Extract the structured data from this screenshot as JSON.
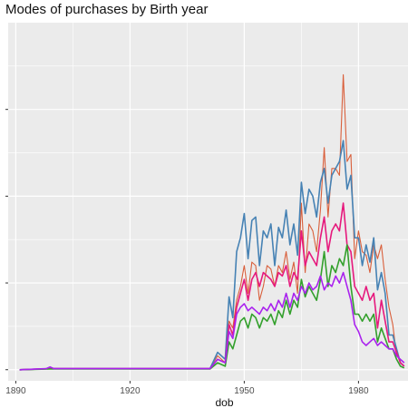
{
  "chart_data": {
    "type": "line",
    "title": "Modes of purchases by Birth year",
    "xlabel": "dob",
    "ylabel": "",
    "xlim": [
      1888,
      1993
    ],
    "ylim": [
      0,
      100
    ],
    "x_ticks": [
      "1890",
      "1920",
      "1950",
      "1980"
    ],
    "y_tick_values": [
      0,
      25,
      50,
      75
    ],
    "grid": true,
    "legend": "none",
    "background": "#ebebeb",
    "gridline_color": "#ffffff",
    "series": [
      {
        "color": "#d95f3b",
        "points": [
          [
            1891,
            0
          ],
          [
            1899,
            0.3
          ],
          [
            1941,
            0.3
          ],
          [
            1943,
            4
          ],
          [
            1945,
            2
          ],
          [
            1946,
            14
          ],
          [
            1947,
            12
          ],
          [
            1948,
            20
          ],
          [
            1949,
            24
          ],
          [
            1950,
            30
          ],
          [
            1951,
            22
          ],
          [
            1952,
            31
          ],
          [
            1953,
            30
          ],
          [
            1954,
            20
          ],
          [
            1955,
            24
          ],
          [
            1956,
            30
          ],
          [
            1957,
            29
          ],
          [
            1958,
            24
          ],
          [
            1959,
            30
          ],
          [
            1960,
            28
          ],
          [
            1961,
            34
          ],
          [
            1962,
            26
          ],
          [
            1963,
            31
          ],
          [
            1964,
            22
          ],
          [
            1965,
            48
          ],
          [
            1966,
            28
          ],
          [
            1967,
            42
          ],
          [
            1968,
            40
          ],
          [
            1969,
            34
          ],
          [
            1970,
            46
          ],
          [
            1971,
            64
          ],
          [
            1972,
            44
          ],
          [
            1973,
            58
          ],
          [
            1974,
            58
          ],
          [
            1975,
            56
          ],
          [
            1976,
            85
          ],
          [
            1977,
            60
          ],
          [
            1978,
            62
          ],
          [
            1979,
            32
          ],
          [
            1980,
            40
          ],
          [
            1981,
            34
          ],
          [
            1982,
            33
          ],
          [
            1983,
            28
          ],
          [
            1984,
            36
          ],
          [
            1985,
            32
          ],
          [
            1986,
            36
          ],
          [
            1987,
            26
          ],
          [
            1988,
            18
          ],
          [
            1989,
            13
          ],
          [
            1990,
            4
          ],
          [
            1991,
            3
          ],
          [
            1992,
            2
          ]
        ]
      },
      {
        "color": "#4682b4",
        "points": [
          [
            1891,
            0
          ],
          [
            1899,
            0.3
          ],
          [
            1941,
            0.3
          ],
          [
            1943,
            5
          ],
          [
            1945,
            3
          ],
          [
            1946,
            21
          ],
          [
            1947,
            15
          ],
          [
            1948,
            34
          ],
          [
            1949,
            38
          ],
          [
            1950,
            45
          ],
          [
            1951,
            32
          ],
          [
            1952,
            43
          ],
          [
            1953,
            44
          ],
          [
            1954,
            30
          ],
          [
            1955,
            40
          ],
          [
            1956,
            38
          ],
          [
            1957,
            42
          ],
          [
            1958,
            30
          ],
          [
            1959,
            41
          ],
          [
            1960,
            38
          ],
          [
            1961,
            46
          ],
          [
            1962,
            36
          ],
          [
            1963,
            42
          ],
          [
            1964,
            33
          ],
          [
            1965,
            54
          ],
          [
            1966,
            45
          ],
          [
            1967,
            52
          ],
          [
            1968,
            50
          ],
          [
            1969,
            44
          ],
          [
            1970,
            54
          ],
          [
            1971,
            58
          ],
          [
            1972,
            48
          ],
          [
            1973,
            56
          ],
          [
            1974,
            58
          ],
          [
            1975,
            60
          ],
          [
            1976,
            66
          ],
          [
            1977,
            52
          ],
          [
            1978,
            56
          ],
          [
            1979,
            38
          ],
          [
            1980,
            38
          ],
          [
            1981,
            30
          ],
          [
            1982,
            36
          ],
          [
            1983,
            31
          ],
          [
            1984,
            38
          ],
          [
            1985,
            23
          ],
          [
            1986,
            28
          ],
          [
            1987,
            22
          ],
          [
            1988,
            10
          ],
          [
            1989,
            10
          ],
          [
            1990,
            6
          ],
          [
            1991,
            2
          ],
          [
            1992,
            1
          ]
        ]
      },
      {
        "color": "#e6197d",
        "points": [
          [
            1891,
            0
          ],
          [
            1899,
            0.3
          ],
          [
            1941,
            0.3
          ],
          [
            1943,
            3
          ],
          [
            1945,
            2
          ],
          [
            1946,
            13
          ],
          [
            1947,
            10
          ],
          [
            1948,
            18
          ],
          [
            1949,
            22
          ],
          [
            1950,
            26
          ],
          [
            1951,
            20
          ],
          [
            1952,
            26
          ],
          [
            1953,
            28
          ],
          [
            1954,
            24
          ],
          [
            1955,
            28
          ],
          [
            1956,
            27
          ],
          [
            1957,
            26
          ],
          [
            1958,
            24
          ],
          [
            1959,
            28
          ],
          [
            1960,
            27
          ],
          [
            1961,
            30
          ],
          [
            1962,
            24
          ],
          [
            1963,
            28
          ],
          [
            1964,
            26
          ],
          [
            1965,
            40
          ],
          [
            1966,
            30
          ],
          [
            1967,
            34
          ],
          [
            1968,
            32
          ],
          [
            1969,
            30
          ],
          [
            1970,
            38
          ],
          [
            1971,
            44
          ],
          [
            1972,
            34
          ],
          [
            1973,
            40
          ],
          [
            1974,
            42
          ],
          [
            1975,
            40
          ],
          [
            1976,
            48
          ],
          [
            1977,
            36
          ],
          [
            1978,
            34
          ],
          [
            1979,
            24
          ],
          [
            1980,
            22
          ],
          [
            1981,
            20
          ],
          [
            1982,
            24
          ],
          [
            1983,
            20
          ],
          [
            1984,
            22
          ],
          [
            1985,
            12
          ],
          [
            1986,
            20
          ],
          [
            1987,
            14
          ],
          [
            1988,
            8
          ],
          [
            1989,
            8
          ],
          [
            1990,
            5
          ],
          [
            1991,
            2
          ],
          [
            1992,
            1
          ]
        ]
      },
      {
        "color": "#33a02c",
        "points": [
          [
            1891,
            0
          ],
          [
            1899,
            0.2
          ],
          [
            1941,
            0.2
          ],
          [
            1943,
            2
          ],
          [
            1945,
            1
          ],
          [
            1946,
            8
          ],
          [
            1947,
            6
          ],
          [
            1948,
            10
          ],
          [
            1949,
            14
          ],
          [
            1950,
            15
          ],
          [
            1951,
            12
          ],
          [
            1952,
            16
          ],
          [
            1953,
            15
          ],
          [
            1954,
            12
          ],
          [
            1955,
            15
          ],
          [
            1956,
            14
          ],
          [
            1957,
            16
          ],
          [
            1958,
            13
          ],
          [
            1959,
            17
          ],
          [
            1960,
            15
          ],
          [
            1961,
            20
          ],
          [
            1962,
            16
          ],
          [
            1963,
            20
          ],
          [
            1964,
            18
          ],
          [
            1965,
            26
          ],
          [
            1966,
            21
          ],
          [
            1967,
            24
          ],
          [
            1968,
            22
          ],
          [
            1969,
            20
          ],
          [
            1970,
            26
          ],
          [
            1971,
            34
          ],
          [
            1972,
            24
          ],
          [
            1973,
            30
          ],
          [
            1974,
            28
          ],
          [
            1975,
            32
          ],
          [
            1976,
            30
          ],
          [
            1977,
            36
          ],
          [
            1978,
            24
          ],
          [
            1979,
            16
          ],
          [
            1980,
            16
          ],
          [
            1981,
            14
          ],
          [
            1982,
            16
          ],
          [
            1983,
            14
          ],
          [
            1984,
            16
          ],
          [
            1985,
            8
          ],
          [
            1986,
            12
          ],
          [
            1987,
            9
          ],
          [
            1988,
            6
          ],
          [
            1989,
            6
          ],
          [
            1990,
            3
          ],
          [
            1991,
            1
          ],
          [
            1992,
            0.5
          ]
        ]
      },
      {
        "color": "#aa22ee",
        "points": [
          [
            1891,
            0
          ],
          [
            1898,
            0.3
          ],
          [
            1899,
            0.8
          ],
          [
            1900,
            0.3
          ],
          [
            1941,
            0.3
          ],
          [
            1943,
            3
          ],
          [
            1945,
            2
          ],
          [
            1946,
            11
          ],
          [
            1947,
            9
          ],
          [
            1948,
            16
          ],
          [
            1949,
            18
          ],
          [
            1950,
            19
          ],
          [
            1951,
            17
          ],
          [
            1952,
            18
          ],
          [
            1953,
            17
          ],
          [
            1954,
            16
          ],
          [
            1955,
            18
          ],
          [
            1956,
            17
          ],
          [
            1957,
            19
          ],
          [
            1958,
            17
          ],
          [
            1959,
            20
          ],
          [
            1960,
            18
          ],
          [
            1961,
            22
          ],
          [
            1962,
            18
          ],
          [
            1963,
            22
          ],
          [
            1964,
            20
          ],
          [
            1965,
            24
          ],
          [
            1966,
            22
          ],
          [
            1967,
            25
          ],
          [
            1968,
            23
          ],
          [
            1969,
            24
          ],
          [
            1970,
            27
          ],
          [
            1971,
            23
          ],
          [
            1972,
            25
          ],
          [
            1973,
            24
          ],
          [
            1974,
            27
          ],
          [
            1975,
            25
          ],
          [
            1976,
            28
          ],
          [
            1977,
            24
          ],
          [
            1978,
            20
          ],
          [
            1979,
            13
          ],
          [
            1980,
            11
          ],
          [
            1981,
            8
          ],
          [
            1982,
            7
          ],
          [
            1983,
            8
          ],
          [
            1984,
            9
          ],
          [
            1985,
            7
          ],
          [
            1986,
            8
          ],
          [
            1987,
            7
          ],
          [
            1988,
            6
          ],
          [
            1989,
            6
          ],
          [
            1990,
            4
          ],
          [
            1991,
            3
          ],
          [
            1992,
            2
          ]
        ]
      }
    ]
  }
}
